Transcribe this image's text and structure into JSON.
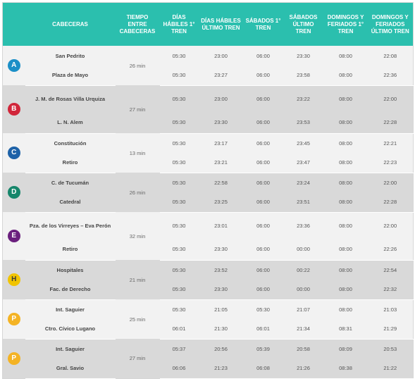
{
  "header": {
    "cabeceras": "CABECERAS",
    "tiempo": "TIEMPO ENTRE CABECERAS",
    "dh_primer": "DÍAS HÁBILES 1° TREN",
    "dh_ultimo": "DÍAS HÁBILES ÚLTIMO TREN",
    "sab_primer": "SÁBADOS 1° TREN",
    "sab_ultimo": "SÁBADOS ÚLTIMO TREN",
    "dom_primer": "DOMINGOS Y FERIADOS 1° TREN",
    "dom_ultimo": "DOMINGOS Y FERIADOS ÚLTIMO TREN"
  },
  "lines": [
    {
      "letter": "A",
      "color": "#1b8fc7",
      "freq": "26 min",
      "rows": [
        {
          "station": "San Pedrito",
          "dh1": "05:30",
          "dhu": "23:00",
          "s1": "06:00",
          "su": "23:30",
          "d1": "08:00",
          "du": "22:08"
        },
        {
          "station": "Plaza de Mayo",
          "dh1": "05:30",
          "dhu": "23:27",
          "s1": "06:00",
          "su": "23:58",
          "d1": "08:00",
          "du": "22:36"
        }
      ]
    },
    {
      "letter": "B",
      "color": "#d1263a",
      "freq": "27 min",
      "rows": [
        {
          "station": "J. M. de Rosas Villa Urquiza",
          "dh1": "05:30",
          "dhu": "23:00",
          "s1": "06:00",
          "su": "23:22",
          "d1": "08:00",
          "du": "22:00"
        },
        {
          "station": "L. N. Alem",
          "dh1": "05:30",
          "dhu": "23:30",
          "s1": "06:00",
          "su": "23:53",
          "d1": "08:00",
          "du": "22:28"
        }
      ]
    },
    {
      "letter": "C",
      "color": "#1e62a8",
      "freq": "13 min",
      "rows": [
        {
          "station": "Constitución",
          "dh1": "05:30",
          "dhu": "23:17",
          "s1": "06:00",
          "su": "23:45",
          "d1": "08:00",
          "du": "22:21"
        },
        {
          "station": "Retiro",
          "dh1": "05:30",
          "dhu": "23:21",
          "s1": "06:00",
          "su": "23:47",
          "d1": "08:00",
          "du": "22:23"
        }
      ]
    },
    {
      "letter": "D",
      "color": "#16866b",
      "freq": "26 min",
      "rows": [
        {
          "station": "C. de Tucumán",
          "dh1": "05:30",
          "dhu": "22:58",
          "s1": "06:00",
          "su": "23:24",
          "d1": "08:00",
          "du": "22:00"
        },
        {
          "station": "Catedral",
          "dh1": "05:30",
          "dhu": "23:25",
          "s1": "06:00",
          "su": "23:51",
          "d1": "08:00",
          "du": "22:28"
        }
      ]
    },
    {
      "letter": "E",
      "color": "#6a1f7d",
      "freq": "32 min",
      "rows": [
        {
          "station": "Pza. de los Virreyes – Eva Perón",
          "dh1": "05:30",
          "dhu": "23:01",
          "s1": "06:00",
          "su": "23:36",
          "d1": "08:00",
          "du": "22:00"
        },
        {
          "station": "Retiro",
          "dh1": "05:30",
          "dhu": "23:30",
          "s1": "06:00",
          "su": "00:00",
          "d1": "08:00",
          "du": "22:26"
        }
      ]
    },
    {
      "letter": "H",
      "color": "#f1c400",
      "freq": "21 min",
      "rows": [
        {
          "station": "Hospitales",
          "dh1": "05:30",
          "dhu": "23:52",
          "s1": "06:00",
          "su": "00:22",
          "d1": "08:00",
          "du": "22:54"
        },
        {
          "station": "Fac. de Derecho",
          "dh1": "05:30",
          "dhu": "23:30",
          "s1": "06:00",
          "su": "00:00",
          "d1": "08:00",
          "du": "22:32"
        }
      ]
    },
    {
      "letter": "P",
      "color": "#f4b324",
      "freq": "25 min",
      "rows": [
        {
          "station": "Int. Saguier",
          "dh1": "05:30",
          "dhu": "21:05",
          "s1": "05:30",
          "su": "21:07",
          "d1": "08:00",
          "du": "21:03"
        },
        {
          "station": "Ctro. Cívico Lugano",
          "dh1": "06:01",
          "dhu": "21:30",
          "s1": "06:01",
          "su": "21:34",
          "d1": "08:31",
          "du": "21:29"
        }
      ]
    },
    {
      "letter": "P",
      "color": "#f4b324",
      "freq": "27 min",
      "rows": [
        {
          "station": "Int. Saguier",
          "dh1": "05:37",
          "dhu": "20:56",
          "s1": "05:39",
          "su": "20:58",
          "d1": "08:09",
          "du": "20:53"
        },
        {
          "station": "Gral. Savio",
          "dh1": "06:06",
          "dhu": "21:23",
          "s1": "06:08",
          "su": "21:26",
          "d1": "08:38",
          "du": "21:22"
        }
      ]
    }
  ]
}
